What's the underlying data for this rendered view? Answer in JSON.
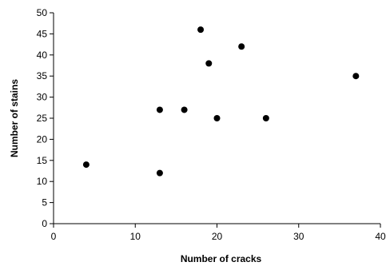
{
  "chart_data": {
    "type": "scatter",
    "title": "",
    "xlabel": "Number of cracks",
    "ylabel": "Number of stains",
    "xlim": [
      0,
      40
    ],
    "ylim": [
      0,
      50
    ],
    "xticks": [
      0,
      10,
      20,
      30,
      40
    ],
    "yticks": [
      0,
      5,
      10,
      15,
      20,
      25,
      30,
      35,
      40,
      45,
      50
    ],
    "grid": false,
    "series": [
      {
        "color": "#000000",
        "points": [
          {
            "x": 4,
            "y": 14
          },
          {
            "x": 13,
            "y": 12
          },
          {
            "x": 13,
            "y": 27
          },
          {
            "x": 16,
            "y": 27
          },
          {
            "x": 18,
            "y": 46
          },
          {
            "x": 19,
            "y": 38
          },
          {
            "x": 20,
            "y": 25
          },
          {
            "x": 23,
            "y": 42
          },
          {
            "x": 26,
            "y": 25
          },
          {
            "x": 37,
            "y": 35
          }
        ]
      }
    ]
  }
}
